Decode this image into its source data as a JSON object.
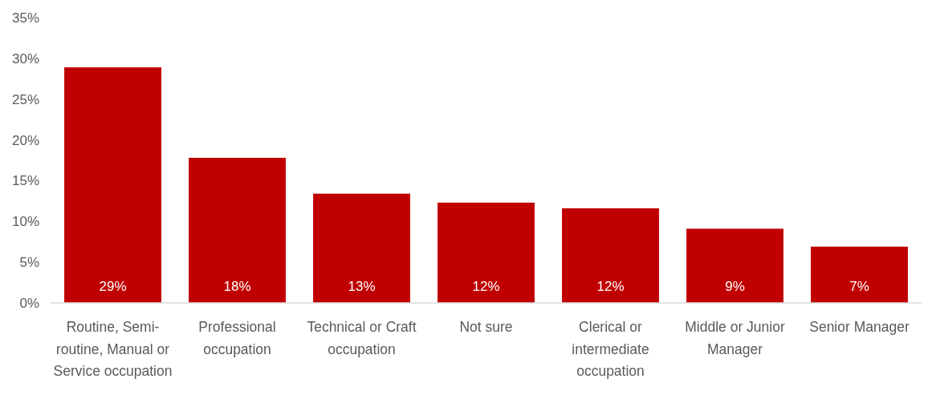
{
  "chart_data": {
    "type": "bar",
    "categories": [
      "Routine, Semi-routine, Manual or Service occupation",
      "Professional occupation",
      "Technical or Craft occupation",
      "Not sure",
      "Clerical or intermediate occupation",
      "Middle or Junior Manager",
      "Senior Manager"
    ],
    "values": [
      28.9,
      17.8,
      13.4,
      12.3,
      11.6,
      9.1,
      6.9
    ],
    "value_labels": [
      "29%",
      "18%",
      "13%",
      "12%",
      "12%",
      "9%",
      "7%"
    ],
    "color": "#c00000",
    "ylim": [
      0,
      35
    ],
    "yticks": [
      {
        "value": 0,
        "label": "0%"
      },
      {
        "value": 5,
        "label": "5%"
      },
      {
        "value": 10,
        "label": "10%"
      },
      {
        "value": 15,
        "label": "15%"
      },
      {
        "value": 20,
        "label": "20%"
      },
      {
        "value": 25,
        "label": "25%"
      },
      {
        "value": 30,
        "label": "30%"
      },
      {
        "value": 35,
        "label": "35%"
      }
    ],
    "grid": false
  }
}
